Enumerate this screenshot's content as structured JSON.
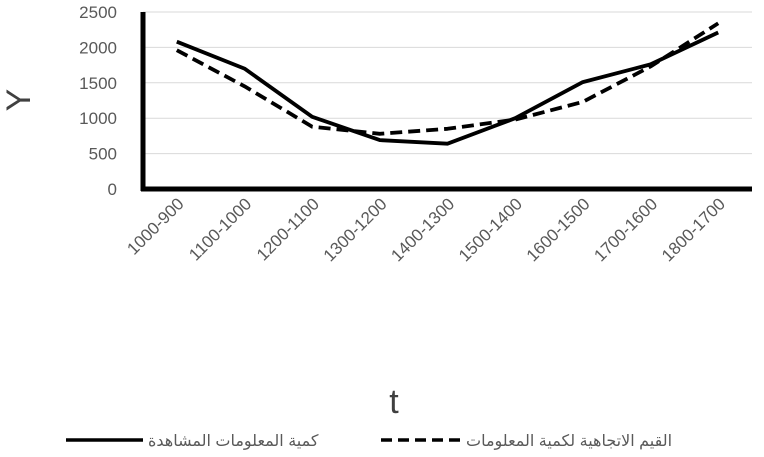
{
  "chart_data": {
    "type": "line",
    "categories": [
      "1000-900",
      "1100-1000",
      "1200-1100",
      "1300-1200",
      "1400-1300",
      "1500-1400",
      "1600-1500",
      "1700-1600",
      "1800-1700"
    ],
    "series": [
      {
        "name": "كمية المعلومات المشاهدة",
        "values": [
          2080,
          1700,
          1020,
          690,
          640,
          1000,
          1510,
          1760,
          2210
        ],
        "style": "solid",
        "color": "#000000"
      },
      {
        "name": "القيم الاتجاهية لكمية المعلومات",
        "values": [
          1960,
          1450,
          880,
          780,
          850,
          980,
          1230,
          1730,
          2340
        ],
        "style": "dashed",
        "color": "#000000"
      }
    ],
    "title": "",
    "xlabel": "t",
    "ylabel": "Y",
    "ylim": [
      0,
      2500
    ],
    "yticks": [
      "0",
      "500",
      "1000",
      "1500",
      "2000",
      "2500"
    ],
    "grid": true,
    "legend_position": "bottom"
  }
}
